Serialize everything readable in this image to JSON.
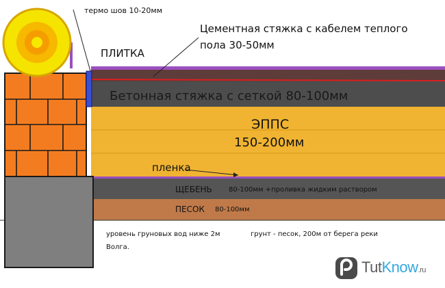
{
  "labels": {
    "termo_seam": "термо шов 10-20мм",
    "cement_screed_line1": "Цементная стяжка с кабелем теплого",
    "cement_screed_line2": "пола 30-50мм",
    "tile": "ПЛИТКА",
    "concrete_screed": "Бетонная стяжка с сеткой 80-100мм",
    "epps": "ЭППС",
    "epps_thickness": "150-200мм",
    "film": "пленка",
    "gravel": "ЩЕБЕНЬ",
    "gravel_note": "80-100мм +проливка жидким раствором",
    "sand": "ПЕСОК",
    "sand_thickness": "80-100мм",
    "groundwater_note": "уровень груновых вод ниже 2м",
    "soil_note": "грунт - песок, 200м от берега реки",
    "volga": "Волга."
  },
  "brand": {
    "name_part1": "Tut",
    "name_part2": "Know",
    "domain": ".ru"
  },
  "colors": {
    "brick": "#f47c20",
    "brick_mortar": "#1a1a1a",
    "foundation": "#7f7f7f",
    "cement_layer": "#5a3a3a",
    "tile_layer": "#9b4fbf",
    "concrete_layer": "#4d4d4d",
    "epps_layer": "#f0b432",
    "gravel_layer": "#555555",
    "sand_layer": "#c07a4a",
    "thermo_seam": "#3a50d0",
    "heating_cable": "#d92020",
    "brand_blue": "#35a8df"
  }
}
